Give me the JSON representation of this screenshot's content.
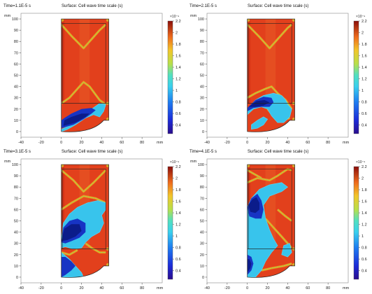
{
  "chart_data": [
    {
      "type": "heatmap",
      "time_label": "Time=1.1E-5 s",
      "title": "Surface: Cell wave time scale (s)",
      "x_unit": "mm",
      "y_unit": "mm",
      "xlim": [
        -40,
        100
      ],
      "ylim": [
        -5,
        105
      ],
      "x_ticks": [
        "-40",
        "-20",
        "0",
        "20",
        "40",
        "60",
        "80"
      ],
      "y_ticks": [
        "0",
        "10",
        "20",
        "30",
        "40",
        "50",
        "60",
        "70",
        "80",
        "90",
        "100"
      ],
      "colorbar": {
        "exponent": "×10⁻⁹",
        "range": [
          0.25,
          2.2
        ],
        "ticks": [
          "2.2",
          "2",
          "1.8",
          "1.6",
          "1.4",
          "1.2",
          "1",
          "0.8",
          "0.6",
          "0.4"
        ]
      }
    },
    {
      "type": "heatmap",
      "time_label": "Time=2.1E-5 s",
      "title": "Surface: Cell wave time scale (s)",
      "x_unit": "mm",
      "y_unit": "mm",
      "xlim": [
        -40,
        100
      ],
      "ylim": [
        -5,
        105
      ],
      "x_ticks": [
        "-40",
        "-20",
        "0",
        "20",
        "40",
        "60",
        "80"
      ],
      "y_ticks": [
        "0",
        "10",
        "20",
        "30",
        "40",
        "50",
        "60",
        "70",
        "80",
        "90",
        "100"
      ],
      "colorbar": {
        "exponent": "×10⁻⁹",
        "range": [
          0.25,
          2.2
        ],
        "ticks": [
          "2.2",
          "2",
          "1.8",
          "1.6",
          "1.4",
          "1.2",
          "1",
          "0.8",
          "0.6",
          "0.4"
        ]
      }
    },
    {
      "type": "heatmap",
      "time_label": "Time=3.1E-5 s",
      "title": "Surface: Cell wave time scale (s)",
      "x_unit": "mm",
      "y_unit": "mm",
      "xlim": [
        -40,
        100
      ],
      "ylim": [
        -5,
        105
      ],
      "x_ticks": [
        "-40",
        "-20",
        "0",
        "20",
        "40",
        "60",
        "80"
      ],
      "y_ticks": [
        "0",
        "10",
        "20",
        "30",
        "40",
        "50",
        "60",
        "70",
        "80",
        "90",
        "100"
      ],
      "colorbar": {
        "exponent": "×10⁻⁹",
        "range": [
          0.25,
          2.2
        ],
        "ticks": [
          "2.2",
          "2",
          "1.8",
          "1.6",
          "1.4",
          "1.2",
          "1",
          "0.8",
          "0.6",
          "0.4"
        ]
      }
    },
    {
      "type": "heatmap",
      "time_label": "Time=4.1E-5 s",
      "title": "Surface: Cell wave time scale (s)",
      "x_unit": "mm",
      "y_unit": "mm",
      "xlim": [
        -40,
        100
      ],
      "ylim": [
        -5,
        105
      ],
      "x_ticks": [
        "-40",
        "-20",
        "0",
        "20",
        "40",
        "60",
        "80"
      ],
      "y_ticks": [
        "0",
        "10",
        "20",
        "30",
        "40",
        "50",
        "60",
        "70",
        "80",
        "90",
        "100"
      ],
      "colorbar": {
        "exponent": "×10⁻⁹",
        "range": [
          0.25,
          2.2
        ],
        "ticks": [
          "2.2",
          "2",
          "1.8",
          "1.6",
          "1.4",
          "1.2",
          "1",
          "0.8",
          "0.6",
          "0.4"
        ]
      }
    }
  ]
}
